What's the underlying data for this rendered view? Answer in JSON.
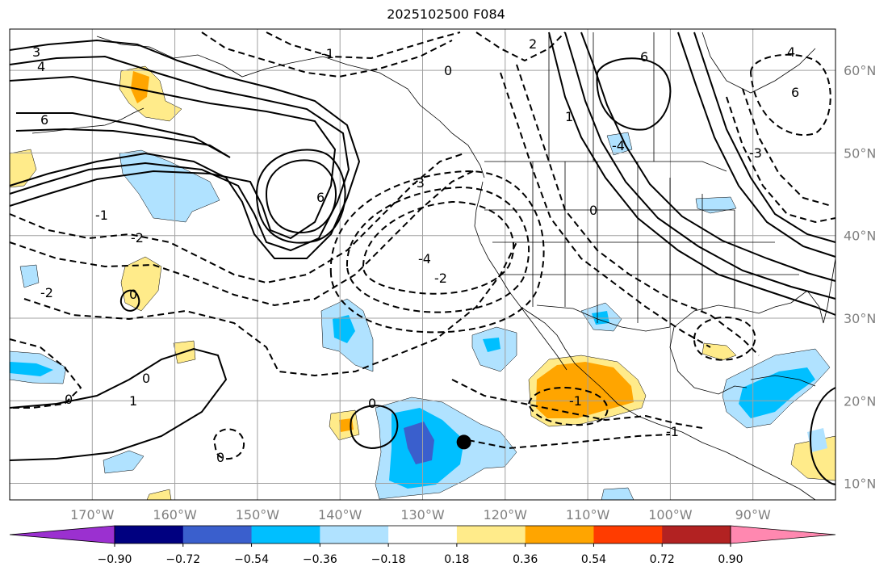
{
  "title": "2025102500 F084",
  "map": {
    "projection": "PlateCarree",
    "lon_range": [
      -180,
      -80
    ],
    "lat_range": [
      8,
      65
    ],
    "lon_ticks": [
      {
        "lon": -170,
        "label": "170°W"
      },
      {
        "lon": -160,
        "label": "160°W"
      },
      {
        "lon": -150,
        "label": "150°W"
      },
      {
        "lon": -140,
        "label": "140°W"
      },
      {
        "lon": -130,
        "label": "130°W"
      },
      {
        "lon": -120,
        "label": "120°W"
      },
      {
        "lon": -110,
        "label": "110°W"
      },
      {
        "lon": -100,
        "label": "100°W"
      },
      {
        "lon": -90,
        "label": "90°W"
      }
    ],
    "lat_ticks": [
      {
        "lat": 60,
        "label": "60°N"
      },
      {
        "lat": 50,
        "label": "50°N"
      },
      {
        "lat": 40,
        "label": "40°N"
      },
      {
        "lat": 30,
        "label": "30°N"
      },
      {
        "lat": 20,
        "label": "20°N"
      },
      {
        "lat": 10,
        "label": "10°N"
      }
    ],
    "gridlines": true,
    "marker": {
      "lon": -125,
      "lat": 15,
      "color": "#000000"
    },
    "contour_labels": [
      "3",
      "4",
      "6",
      "-1",
      "0",
      "-2",
      "-4",
      "-3",
      "1",
      "2"
    ]
  },
  "colorbar": {
    "levels": [
      "−0.90",
      "−0.72",
      "−0.54",
      "−0.36",
      "−0.18",
      "0.18",
      "0.36",
      "0.54",
      "0.72",
      "0.90"
    ],
    "colors": [
      "#9b30d0",
      "#000080",
      "#3a5fcd",
      "#00bfff",
      "#b0e2ff",
      "#ffffff",
      "#ffeb8a",
      "#ffa500",
      "#ff3c00",
      "#b22222",
      "#ff88b0"
    ]
  }
}
